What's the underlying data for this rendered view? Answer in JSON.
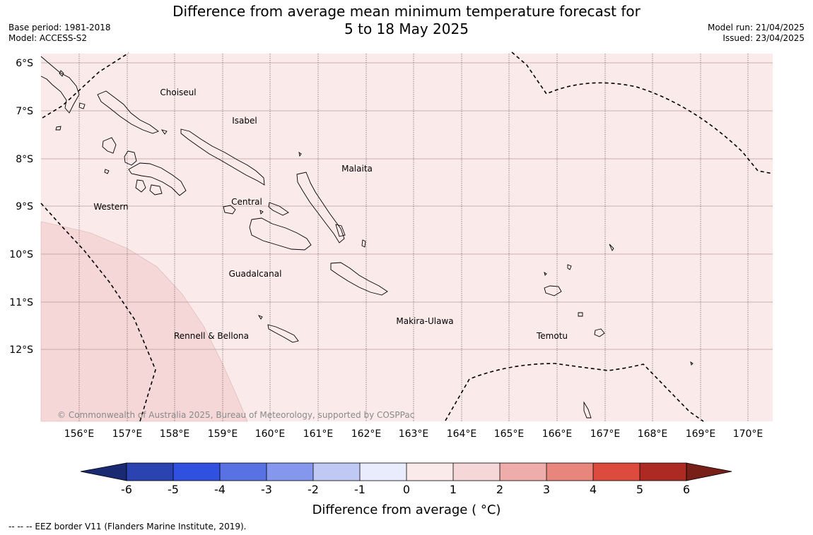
{
  "title": {
    "line1": "Difference from average mean minimum temperature forecast for",
    "line2": "5 to 18 May 2025"
  },
  "meta_left": {
    "base_period": "Base period: 1981-2018",
    "model": "Model: ACCESS-S2"
  },
  "meta_right": {
    "model_run": "Model run: 21/04/2025",
    "issued": "Issued: 23/04/2025"
  },
  "map": {
    "lat_labels": [
      "6°S",
      "7°S",
      "8°S",
      "9°S",
      "10°S",
      "11°S",
      "12°S"
    ],
    "lon_labels": [
      "156°E",
      "157°E",
      "158°E",
      "159°E",
      "160°E",
      "161°E",
      "162°E",
      "163°E",
      "164°E",
      "165°E",
      "166°E",
      "167°E",
      "168°E",
      "169°E",
      "170°E"
    ],
    "regions": [
      "Choiseul",
      "Isabel",
      "Malaita",
      "Western",
      "Central",
      "Guadalcanal",
      "Makira-Ulawa",
      "Temotu",
      "Rennell & Bellona"
    ],
    "copyright": "© Commonwealth of Australia 2025, Bureau of Meteorology, supported by COSPPac",
    "fill_colors": {
      "background": "#fbeaea",
      "warmer_region": "#f4d7d6"
    }
  },
  "colorbar": {
    "ticks": [
      "-6",
      "-5",
      "-4",
      "-3",
      "-2",
      "-1",
      "0",
      "1",
      "2",
      "3",
      "4",
      "5",
      "6"
    ],
    "colors": [
      "#1a2a72",
      "#2a43b0",
      "#3050e0",
      "#5872e4",
      "#8597ec",
      "#c0c8f4",
      "#e8ecfc",
      "#fbeaea",
      "#f4d7d6",
      "#eeadab",
      "#e8857d",
      "#dd4b3e",
      "#ad2a22",
      "#782018"
    ],
    "label": "Difference from average ( °C)"
  },
  "footnote": "--  --  -- EEZ border V11 (Flanders Marine Institute, 2019)."
}
